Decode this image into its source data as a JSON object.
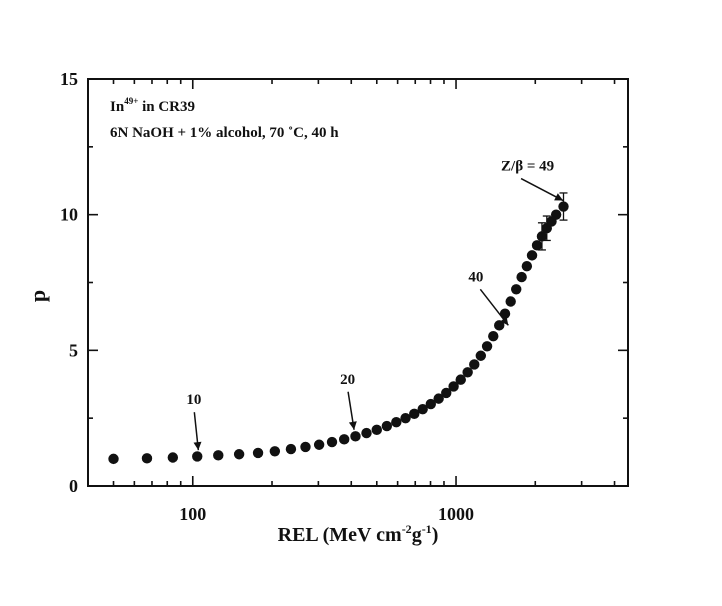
{
  "chart_data": {
    "type": "scatter",
    "title": "",
    "xlabel": "REL (MeV cm",
    "xlabel_sup1": "-2",
    "xlabel_mid": "g",
    "xlabel_sup2": "-1",
    "xlabel_end": ")",
    "ylabel": "p",
    "xscale": "log",
    "xlim": [
      40,
      4500
    ],
    "ylim": [
      0,
      15
    ],
    "x_ticks": [
      {
        "value": 100,
        "label": "100"
      },
      {
        "value": 1000,
        "label": "1000"
      }
    ],
    "y_ticks": [
      {
        "value": 0,
        "label": "0"
      },
      {
        "value": 5,
        "label": "5"
      },
      {
        "value": 10,
        "label": "10"
      },
      {
        "value": 15,
        "label": "15"
      }
    ],
    "legend_lines": {
      "ion_prefix": "In",
      "ion_charge": "49+",
      "ion_suffix": " in CR39",
      "etch_conditions": "6N NaOH + 1% alcohol, 70 ˚C, 40 h"
    },
    "annotations": [
      {
        "text": "10",
        "x": 105,
        "y": 1.1
      },
      {
        "text": "20",
        "x": 410,
        "y": 1.85
      },
      {
        "text": "40",
        "x": 1580,
        "y": 5.7
      },
      {
        "text": "Z/β = 49",
        "x": 2550,
        "y": 10.3
      }
    ],
    "series": [
      {
        "x": [
          50,
          67,
          84,
          104,
          125,
          150,
          177,
          205,
          236,
          268,
          302,
          338,
          376,
          415,
          457,
          500,
          546,
          593,
          643,
          694,
          747,
          802,
          859,
          918,
          979,
          1042,
          1107,
          1173,
          1242,
          1312,
          1385,
          1459,
          1535,
          1613,
          1693,
          1775,
          1858,
          1944,
          2031,
          2120,
          2212,
          2305,
          2400,
          2560
        ],
        "y": [
          1.0,
          1.02,
          1.05,
          1.09,
          1.13,
          1.17,
          1.22,
          1.28,
          1.36,
          1.44,
          1.52,
          1.62,
          1.72,
          1.83,
          1.95,
          2.07,
          2.21,
          2.35,
          2.5,
          2.66,
          2.83,
          3.02,
          3.22,
          3.43,
          3.67,
          3.92,
          4.19,
          4.48,
          4.8,
          5.15,
          5.52,
          5.92,
          6.35,
          6.8,
          7.25,
          7.7,
          8.1,
          8.5,
          8.87,
          9.2,
          9.5,
          9.75,
          10.0,
          10.3
        ],
        "error_bars": [
          {
            "x": 2560,
            "low": 9.8,
            "high": 10.8
          },
          {
            "x": 2120,
            "low": 8.7,
            "high": 9.7
          },
          {
            "x": 2212,
            "low": 9.05,
            "high": 9.95
          }
        ]
      }
    ]
  }
}
